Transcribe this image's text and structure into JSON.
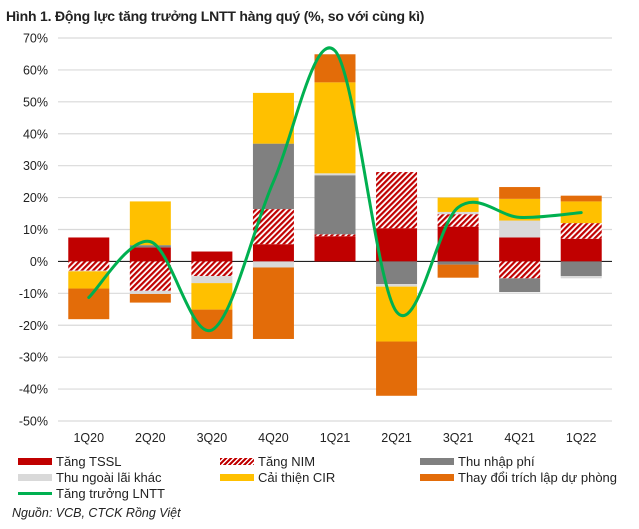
{
  "chart_data": {
    "type": "bar",
    "stacked": true,
    "title": "Hình 1. Động lực tăng trưởng LNTT hàng quý (%, so với cùng kì)",
    "xlabel": "",
    "ylabel": "",
    "ylim": [
      -50,
      70
    ],
    "yticks": [
      -50,
      -40,
      -30,
      -20,
      -10,
      0,
      10,
      20,
      30,
      40,
      50,
      60,
      70
    ],
    "ytick_format": "%",
    "grid": true,
    "legend_position": "bottom",
    "categories": [
      "1Q20",
      "2Q20",
      "3Q20",
      "4Q20",
      "1Q21",
      "2Q21",
      "3Q21",
      "4Q21",
      "1Q22"
    ],
    "series": [
      {
        "name": "Tăng TSSL",
        "color": "#C00000",
        "pattern": "solid",
        "values": [
          7.5,
          4.4,
          3.1,
          5.4,
          7.9,
          10.4,
          10.9,
          7.5,
          7.1
        ]
      },
      {
        "name": "Tăng NIM",
        "color": "#C00000",
        "pattern": "hatch",
        "values": [
          -2.9,
          -9.2,
          -4.6,
          11.0,
          0.6,
          17.6,
          3.9,
          -5.3,
          4.9
        ]
      },
      {
        "name": "Thu nhập phí",
        "color": "#808080",
        "pattern": "solid",
        "values": [
          0,
          0.7,
          0,
          20.5,
          18.5,
          -7.1,
          -1.0,
          -4.3,
          -4.6
        ]
      },
      {
        "name": "Thu ngoài lãi khác",
        "color": "#D9D9D9",
        "pattern": "solid",
        "values": [
          -0.2,
          -1.0,
          -2.2,
          -1.9,
          0.6,
          -0.8,
          0.7,
          5.3,
          -0.7
        ]
      },
      {
        "name": "Cải thiện CIR",
        "color": "#FFC000",
        "pattern": "solid",
        "values": [
          -5.4,
          13.7,
          -8.3,
          15.9,
          28.5,
          -17.2,
          4.5,
          6.8,
          6.8
        ]
      },
      {
        "name": "Thay đổi trích lập dự phòng",
        "color": "#E36C09",
        "pattern": "solid",
        "values": [
          -9.6,
          -2.7,
          -9.2,
          -22.4,
          8.8,
          -17.0,
          -4.1,
          3.7,
          1.8
        ]
      }
    ],
    "line": {
      "name": "Tăng trưởng LNTT",
      "color": "#00B050",
      "values": [
        -11.3,
        6.2,
        -21.5,
        25.0,
        66.0,
        -15.8,
        16.9,
        13.8,
        15.3
      ],
      "smooth": true
    }
  },
  "source": "Nguồn: VCB, CTCK Rồng Việt"
}
